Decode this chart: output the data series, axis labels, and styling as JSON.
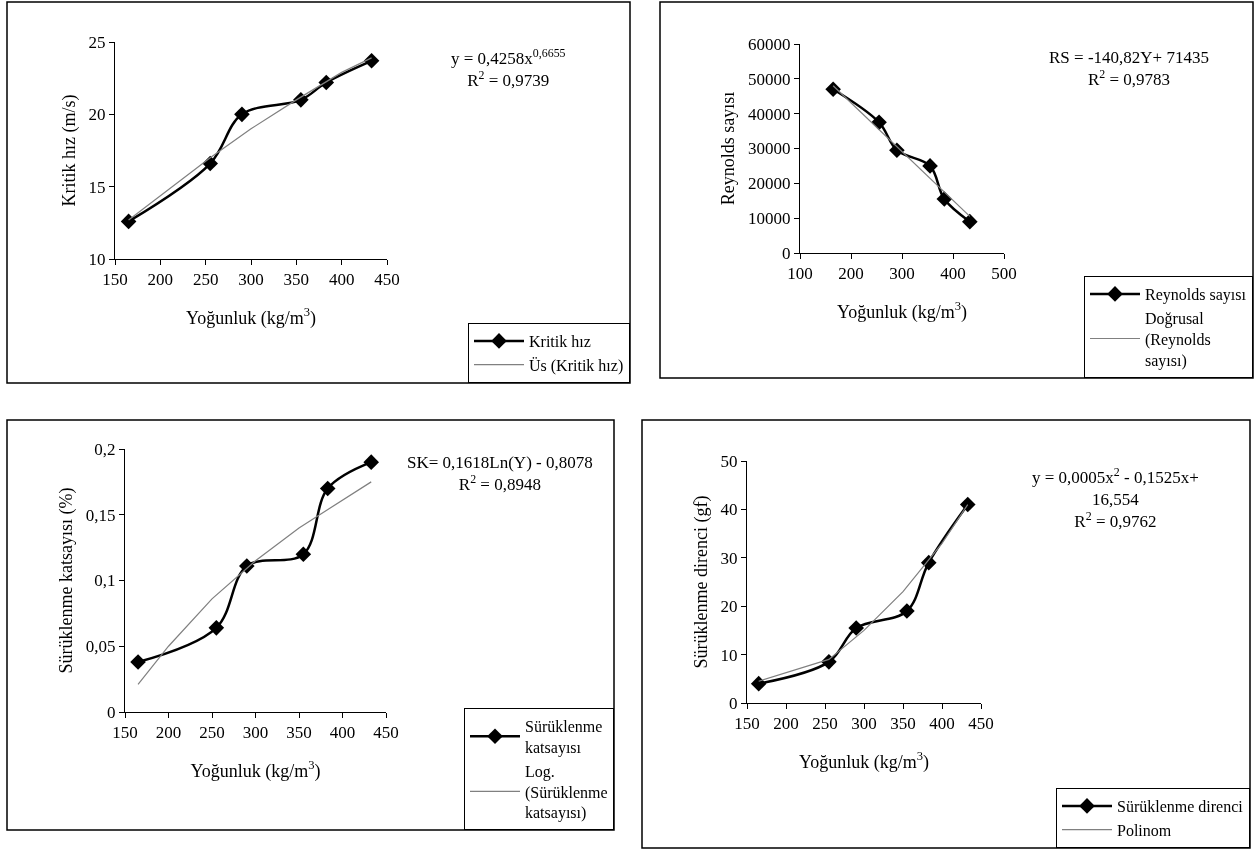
{
  "chart_data": [
    {
      "type": "line",
      "xlabel": "Yoğunluk (kg/m$^{3}$)",
      "ylabel": "Kritik hız (m/s)",
      "xlim": [
        150,
        450
      ],
      "xticks": [
        150,
        200,
        250,
        300,
        350,
        400,
        450
      ],
      "ylim": [
        10,
        25
      ],
      "yticks": [
        10,
        15,
        20,
        25
      ],
      "legend": "bottom right",
      "annotations": [
        "y = 0,4258x$^{0,6655}$",
        "R$^{2}$ = 0,9739"
      ],
      "series": [
        {
          "name": "Kritik hız",
          "color": "#000000",
          "marker": "diamond",
          "x": [
            165,
            255,
            290,
            355,
            383,
            433
          ],
          "values": [
            12.6,
            16.6,
            20.0,
            21.0,
            22.2,
            23.7
          ]
        },
        {
          "name": "Üs (Kritik hız)",
          "color": "#808080",
          "marker": "none",
          "x": [
            165,
            255,
            300,
            350,
            400,
            433
          ],
          "values": [
            12.7,
            17.0,
            19.0,
            21.0,
            22.9,
            23.9
          ]
        }
      ]
    },
    {
      "type": "line",
      "xlabel": "Yoğunluk (kg/m$^{3}$)",
      "ylabel": "Reynolds sayısı",
      "xlim": [
        100,
        500
      ],
      "xticks": [
        100,
        200,
        300,
        400,
        500
      ],
      "ylim": [
        0,
        60000
      ],
      "yticks": [
        0,
        10000,
        20000,
        30000,
        40000,
        50000,
        60000
      ],
      "legend": "bottom right",
      "annotations": [
        "RS = -140,82Y+ 71435",
        "R$^{2}$ = 0,9783"
      ],
      "series": [
        {
          "name": "Reynolds sayısı",
          "color": "#000000",
          "marker": "diamond",
          "x": [
            165,
            255,
            290,
            355,
            383,
            433
          ],
          "values": [
            47000,
            37500,
            29500,
            25000,
            15500,
            9000
          ]
        },
        {
          "name": "Doğrusal (Reynolds sayısı)",
          "color": "#808080",
          "marker": "none",
          "x": [
            165,
            433
          ],
          "values": [
            48000,
            10500
          ]
        }
      ]
    },
    {
      "type": "line",
      "xlabel": "Yoğunluk (kg/m$^{3}$)",
      "ylabel": "Sürüklenme katsayısı (%)",
      "xlim": [
        150,
        450
      ],
      "xticks": [
        150,
        200,
        250,
        300,
        350,
        400,
        450
      ],
      "ylim": [
        0,
        0.2
      ],
      "yticks": [
        {
          "value": 0,
          "label": "0"
        },
        {
          "value": 0.05,
          "label": "0,05"
        },
        {
          "value": 0.1,
          "label": "0,1"
        },
        {
          "value": 0.15,
          "label": "0,15"
        },
        {
          "value": 0.2,
          "label": "0,2"
        }
      ],
      "legend": "bottom right",
      "annotations": [
        "SK= 0,1618Ln(Y) - 0,8078",
        "R$^{2}$ = 0,8948"
      ],
      "series": [
        {
          "name": "Sürüklenme katsayısı",
          "color": "#000000",
          "marker": "diamond",
          "x": [
            165,
            255,
            290,
            355,
            383,
            433
          ],
          "values": [
            0.038,
            0.064,
            0.111,
            0.12,
            0.17,
            0.19
          ]
        },
        {
          "name": "Log. (Sürüklenme katsayısı)",
          "color": "#808080",
          "marker": "none",
          "x": [
            165,
            200,
            250,
            300,
            350,
            433
          ],
          "values": [
            0.021,
            0.05,
            0.086,
            0.115,
            0.14,
            0.175
          ]
        }
      ]
    },
    {
      "type": "line",
      "xlabel": "Yoğunluk (kg/m$^{3}$)",
      "ylabel": "Sürüklenme direnci (gf)",
      "xlim": [
        150,
        450
      ],
      "xticks": [
        150,
        200,
        250,
        300,
        350,
        400,
        450
      ],
      "ylim": [
        0,
        50
      ],
      "yticks": [
        0,
        10,
        20,
        30,
        40,
        50
      ],
      "legend": "bottom right",
      "annotations": [
        "y = 0,0005x$^{2}$ - 0,1525x+ 16,554",
        "R$^{2}$ = 0,9762"
      ],
      "series": [
        {
          "name": "Sürüklenme direnci",
          "color": "#000000",
          "marker": "diamond",
          "x": [
            165,
            255,
            290,
            355,
            383,
            433
          ],
          "values": [
            4,
            8.5,
            15.5,
            19,
            29,
            41
          ]
        },
        {
          "name": "Polinom",
          "color": "#808080",
          "marker": "none",
          "x": [
            165,
            255,
            300,
            350,
            400,
            433
          ],
          "values": [
            4.5,
            9,
            15,
            23,
            33,
            41
          ]
        }
      ]
    }
  ]
}
